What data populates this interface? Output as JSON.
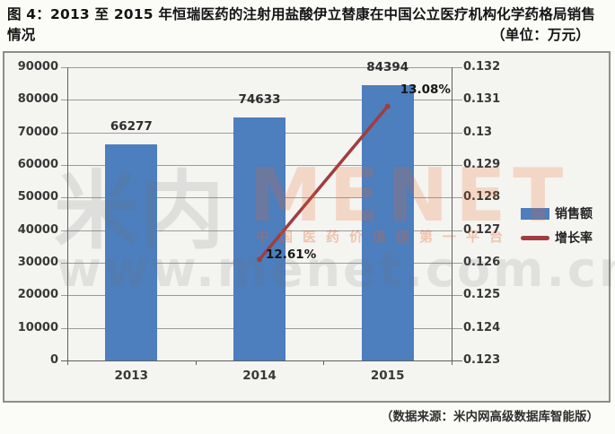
{
  "header": {
    "title_line1": "图 4：2013 至 2015 年恒瑞医药的注射用盐酸伊立替康在中国公立医疗机构化学药格局销售",
    "title_line2": "情况",
    "unit": "（单位：万元）"
  },
  "chart_data": {
    "type": "bar",
    "combo": "bar+line, dual y-axes",
    "title": "2013至2015年恒瑞医药的注射用盐酸伊立替康在中国公立医疗机构化学药格局销售情况",
    "unit": "万元",
    "categories": [
      "2013",
      "2014",
      "2015"
    ],
    "series": [
      {
        "name": "销售额",
        "type": "bar",
        "axis": "left",
        "color": "#4d7ebd",
        "values": [
          66277,
          74633,
          84394
        ],
        "data_labels": [
          "66277",
          "74633",
          "84394"
        ]
      },
      {
        "name": "增长率",
        "type": "line",
        "axis": "right",
        "color": "#a03d41",
        "values": [
          null,
          0.1261,
          0.1308
        ],
        "data_labels": [
          null,
          "12.61%",
          "13.08%"
        ]
      }
    ],
    "left_axis": {
      "min": 0,
      "max": 90000,
      "step": 10000,
      "tick_labels": [
        "90000",
        "80000",
        "70000",
        "60000",
        "50000",
        "40000",
        "30000",
        "20000",
        "10000",
        "0"
      ]
    },
    "right_axis": {
      "min": 0.123,
      "max": 0.132,
      "step": 0.001,
      "tick_labels": [
        "0.132",
        "0.131",
        "0.13",
        "0.129",
        "0.128",
        "0.127",
        "0.126",
        "0.125",
        "0.124",
        "0.123"
      ]
    },
    "grid": true,
    "legend_position": "right"
  },
  "legend": {
    "items": [
      {
        "label": "销售额",
        "color": "#4d7ebd",
        "swatch": "rect"
      },
      {
        "label": "增长率",
        "color": "#a03d41",
        "swatch": "line"
      }
    ]
  },
  "watermark": {
    "logo": "米内",
    "brand": "MENET",
    "slogan": "中国医药价值链第一平台",
    "url": "www.menet.com.cn"
  },
  "source": "（数据来源：米内网高级数据库智能版）"
}
